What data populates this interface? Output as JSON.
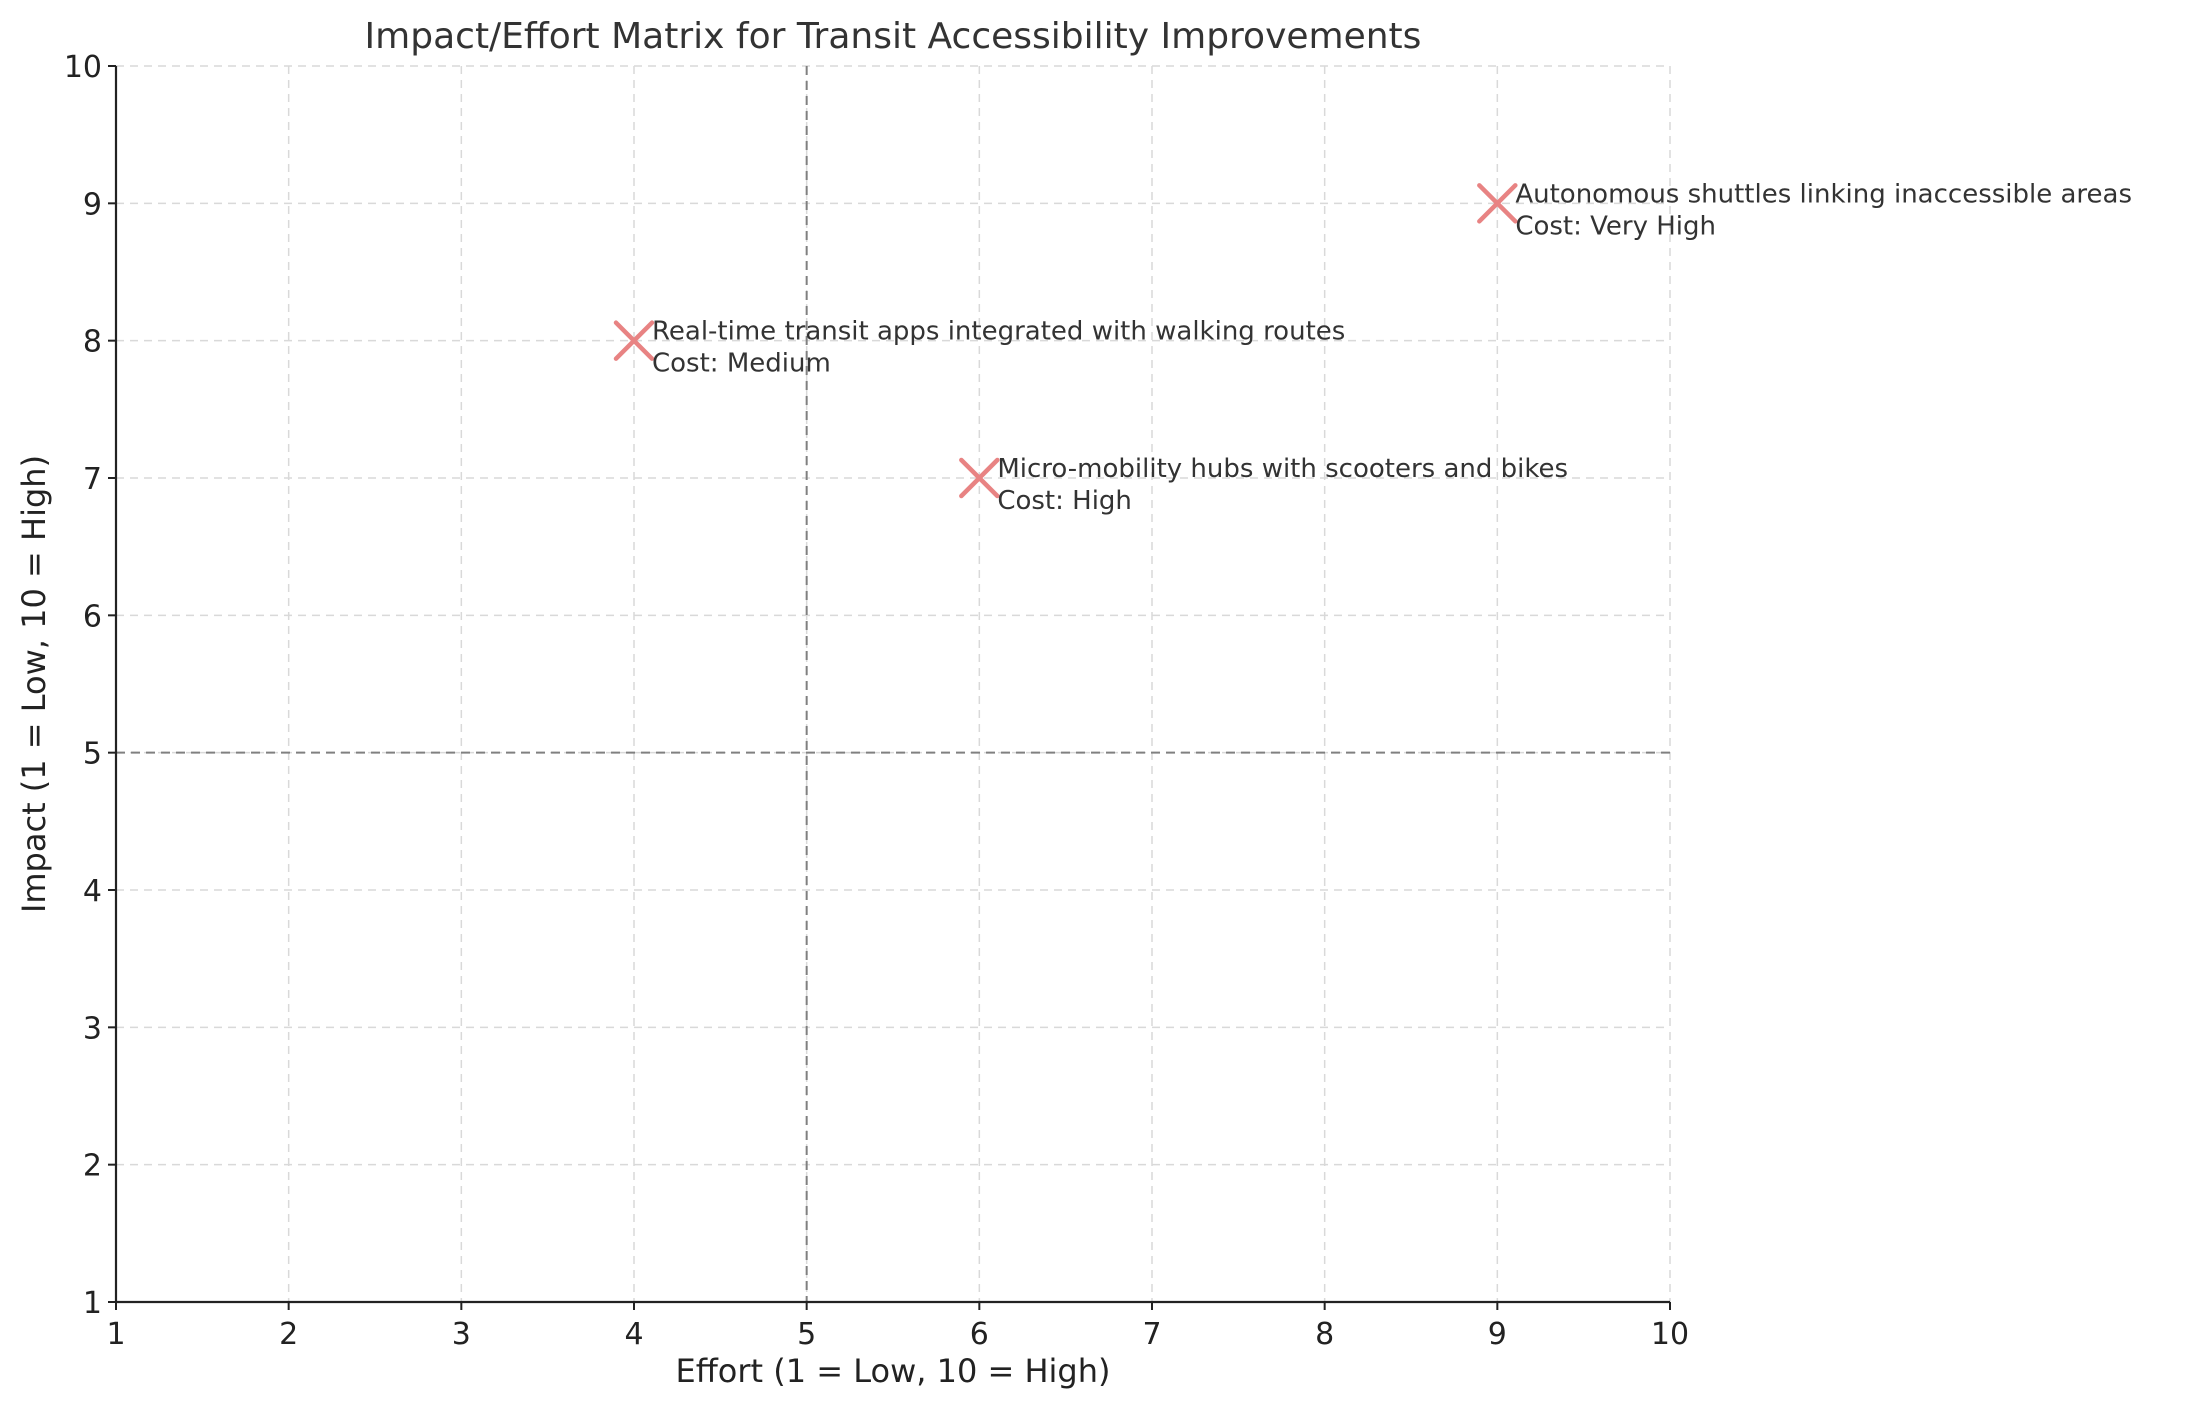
{
  "chart_data": {
    "type": "scatter",
    "title": "Impact/Effort Matrix for Transit Accessibility Improvements",
    "xlabel": "Effort (1 = Low, 10 = High)",
    "ylabel": "Impact (1 = Low, 10 = High)",
    "xlim": [
      1,
      10
    ],
    "ylim": [
      1,
      10
    ],
    "xticks": [
      "1",
      "2",
      "3",
      "4",
      "5",
      "6",
      "7",
      "8",
      "9",
      "10"
    ],
    "yticks": [
      "1",
      "2",
      "3",
      "4",
      "5",
      "6",
      "7",
      "8",
      "9",
      "10"
    ],
    "grid": true,
    "threshold_lines": {
      "x": 5,
      "y": 5
    },
    "marker": "x",
    "marker_color": "#e88383",
    "points": [
      {
        "x": 4,
        "y": 8,
        "label": "Real-time transit apps integrated with walking routes",
        "cost": "Cost: Medium"
      },
      {
        "x": 6,
        "y": 7,
        "label": "Micro-mobility hubs with scooters and bikes",
        "cost": "Cost: High"
      },
      {
        "x": 9,
        "y": 9,
        "label": "Autonomous shuttles linking inaccessible areas",
        "cost": "Cost: Very High"
      }
    ]
  }
}
